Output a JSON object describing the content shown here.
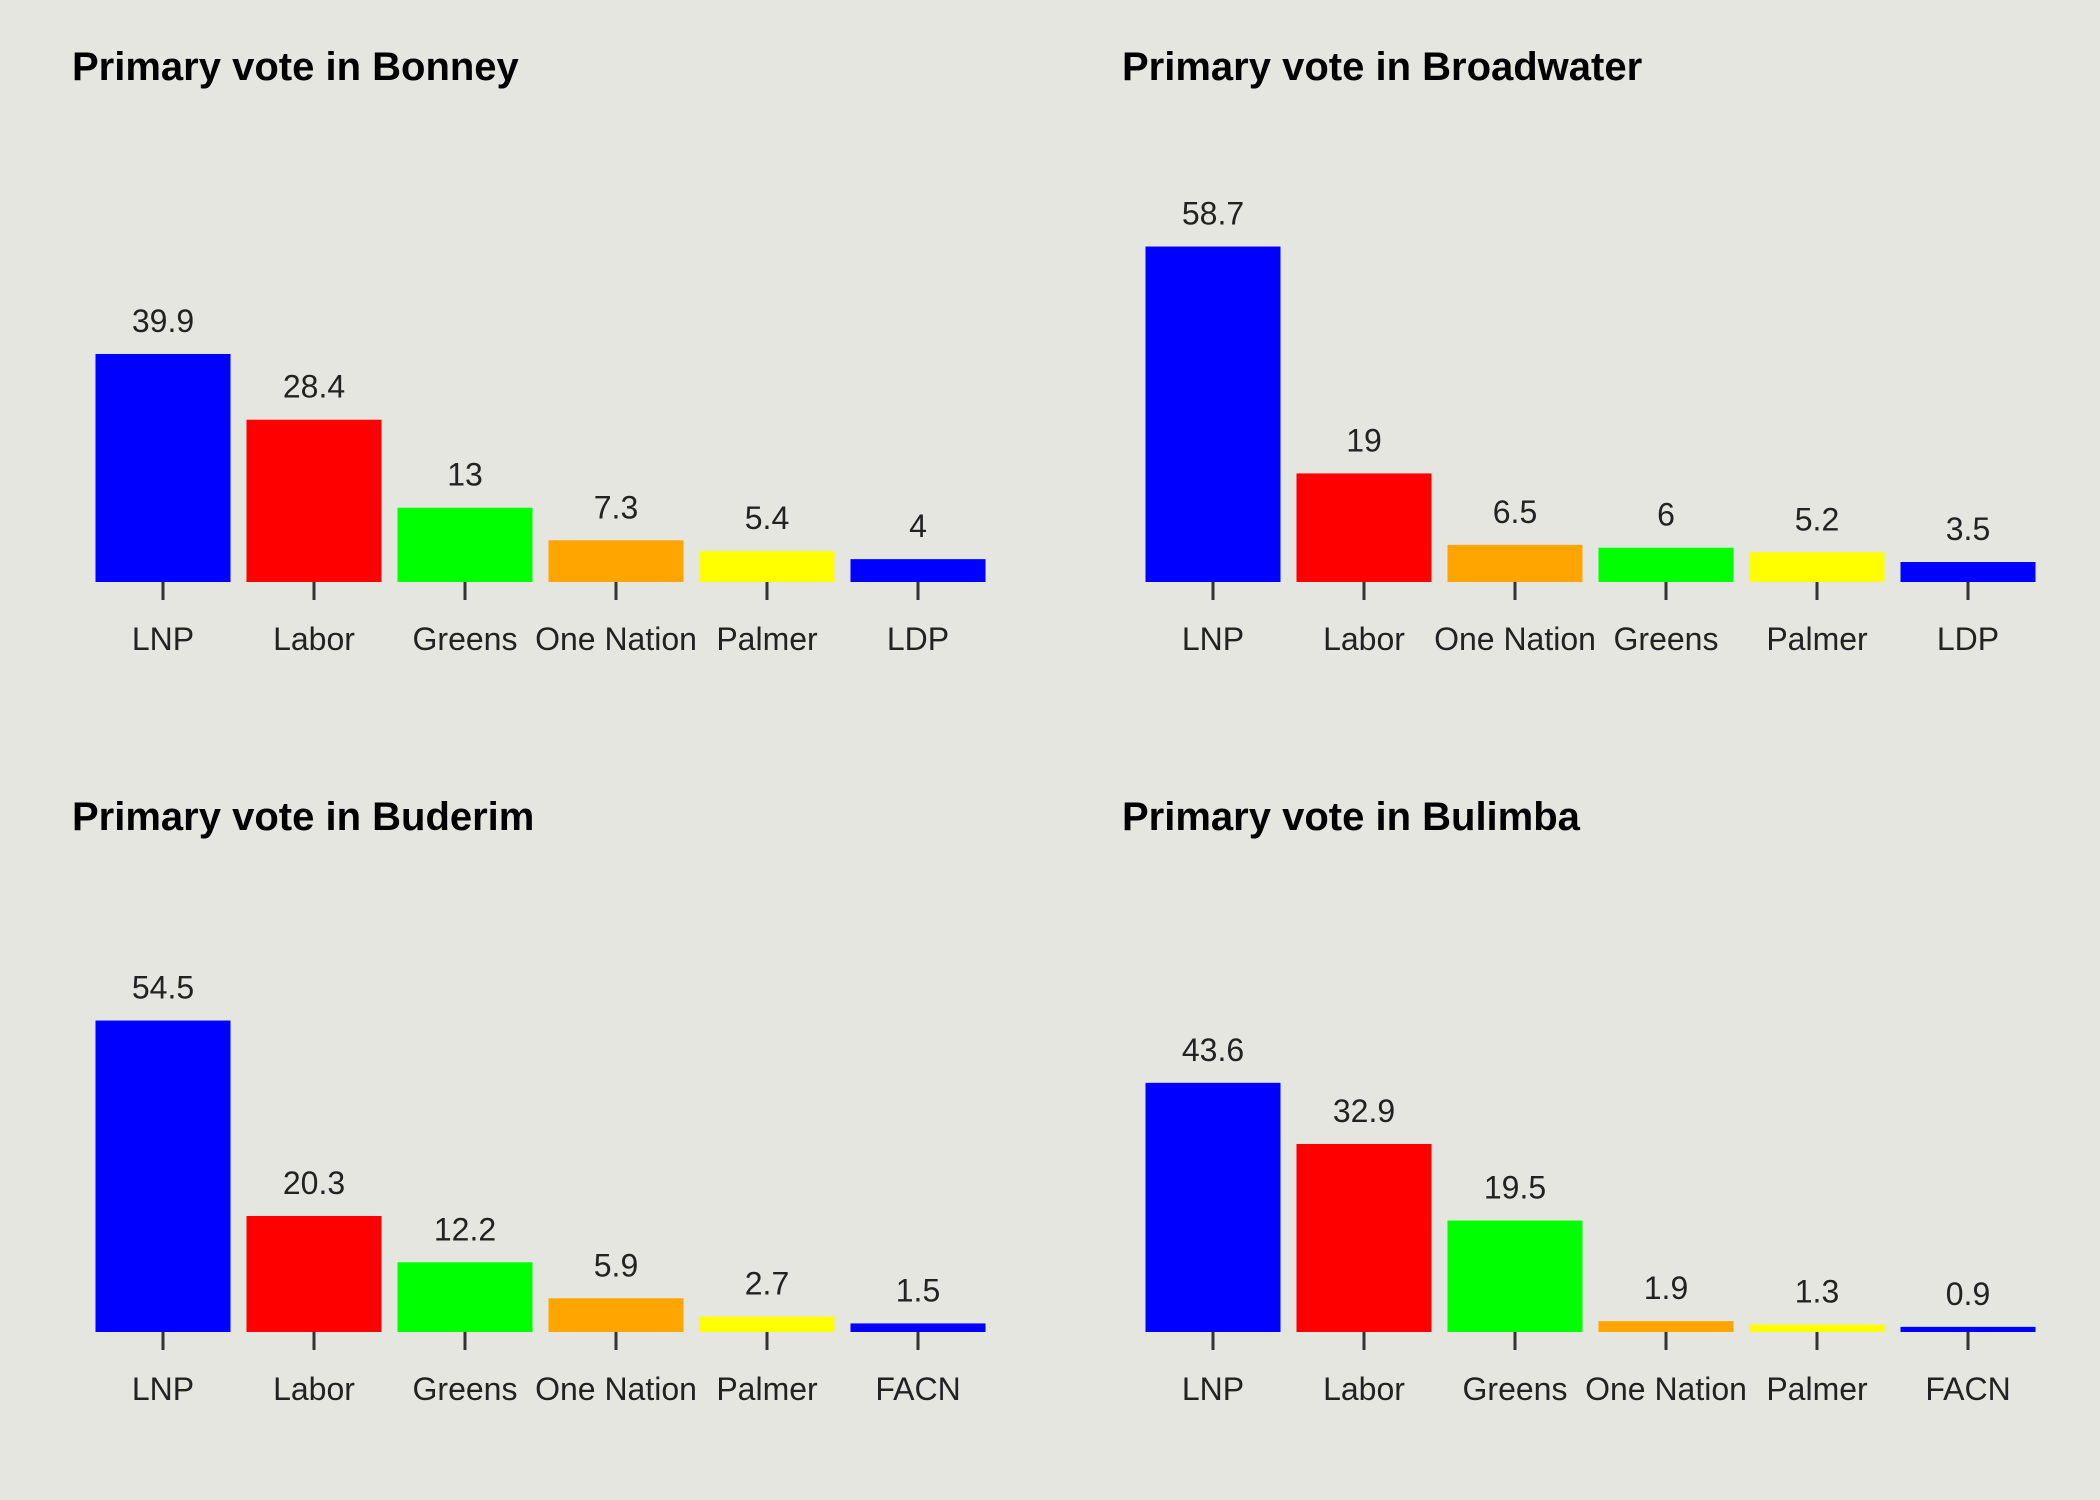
{
  "chart_data": [
    {
      "type": "bar",
      "title": "Primary vote in Bonney",
      "categories": [
        "LNP",
        "Labor",
        "Greens",
        "One Nation",
        "Palmer",
        "LDP"
      ],
      "values": [
        39.9,
        28.4,
        13,
        7.3,
        5.4,
        4
      ],
      "data_labels": [
        "39.9",
        "28.4",
        "13",
        "7.3",
        "5.4",
        "4"
      ],
      "colors": [
        "#0000ff",
        "#ff0000",
        "#00ff00",
        "#ffa500",
        "#ffff00",
        "#0000ff"
      ],
      "xlabel": "",
      "ylabel": "",
      "ylim": [
        0,
        65
      ],
      "grid": false
    },
    {
      "type": "bar",
      "title": "Primary vote in Broadwater",
      "categories": [
        "LNP",
        "Labor",
        "One Nation",
        "Greens",
        "Palmer",
        "LDP"
      ],
      "values": [
        58.7,
        19,
        6.5,
        6,
        5.2,
        3.5
      ],
      "data_labels": [
        "58.7",
        "19",
        "6.5",
        "6",
        "5.2",
        "3.5"
      ],
      "colors": [
        "#0000ff",
        "#ff0000",
        "#ffa500",
        "#00ff00",
        "#ffff00",
        "#0000ff"
      ],
      "xlabel": "",
      "ylabel": "",
      "ylim": [
        0,
        65
      ],
      "grid": false
    },
    {
      "type": "bar",
      "title": "Primary vote in Buderim",
      "categories": [
        "LNP",
        "Labor",
        "Greens",
        "One Nation",
        "Palmer",
        "FACN"
      ],
      "values": [
        54.5,
        20.3,
        12.2,
        5.9,
        2.7,
        1.5
      ],
      "data_labels": [
        "54.5",
        "20.3",
        "12.2",
        "5.9",
        "2.7",
        "1.5"
      ],
      "colors": [
        "#0000ff",
        "#ff0000",
        "#00ff00",
        "#ffa500",
        "#ffff00",
        "#0000ff"
      ],
      "xlabel": "",
      "ylabel": "",
      "ylim": [
        0,
        65
      ],
      "grid": false
    },
    {
      "type": "bar",
      "title": "Primary vote in Bulimba",
      "categories": [
        "LNP",
        "Labor",
        "Greens",
        "One Nation",
        "Palmer",
        "FACN"
      ],
      "values": [
        43.6,
        32.9,
        19.5,
        1.9,
        1.3,
        0.9
      ],
      "data_labels": [
        "43.6",
        "32.9",
        "19.5",
        "1.9",
        "1.3",
        "0.9"
      ],
      "colors": [
        "#0000ff",
        "#ff0000",
        "#00ff00",
        "#ffa500",
        "#ffff00",
        "#0000ff"
      ],
      "xlabel": "",
      "ylabel": "",
      "ylim": [
        0,
        65
      ],
      "grid": false
    }
  ]
}
